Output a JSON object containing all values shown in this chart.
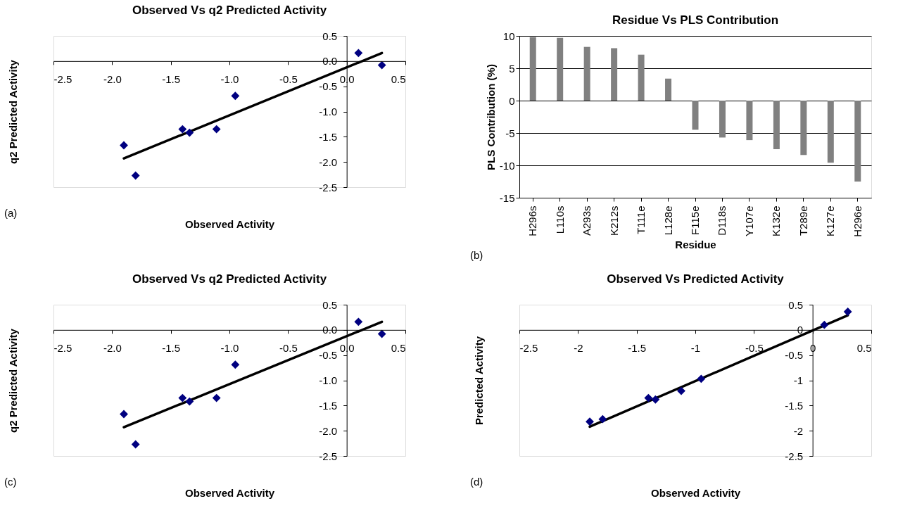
{
  "chart_data": [
    {
      "type": "scatter",
      "title": "Observed Vs q2 Predicted Activity",
      "xlabel": "Observed Activity",
      "ylabel": "q2 Predicted Activity",
      "xlim": [
        -2.5,
        0.5
      ],
      "ylim": [
        -2.5,
        0.5
      ],
      "xticks": [
        -2.5,
        {
          "value": -2,
          "label": "-2.0"
        },
        -1.5,
        {
          "value": -1,
          "label": "-1.0"
        },
        -0.5,
        {
          "value": 0,
          "label": "0.0"
        },
        0.5
      ],
      "yticks": [
        -2.5,
        {
          "value": -2,
          "label": "-2.0"
        },
        -1.5,
        {
          "value": -1,
          "label": "-1.0"
        },
        -0.5,
        {
          "value": 0,
          "label": "0.0"
        },
        0.5
      ],
      "grid": false,
      "annotations": [
        "(a)"
      ],
      "series": [
        {
          "type": "scatter",
          "marker": "diamond",
          "color": "#000080",
          "x": [
            -1.9,
            -1.8,
            -1.4,
            -1.34,
            -1.11,
            -0.95,
            0.1,
            0.3
          ],
          "values": [
            -1.67,
            -2.27,
            -1.35,
            -1.42,
            -1.35,
            -0.69,
            0.16,
            -0.08
          ]
        },
        {
          "type": "line",
          "line_style": "solid",
          "color": "#000000",
          "x": [
            -1.9,
            0.3
          ],
          "values": [
            -1.93,
            0.16
          ]
        }
      ]
    },
    {
      "type": "bar",
      "title": "Residue Vs PLS Contribution",
      "xlabel": "Residue",
      "ylabel": "PLS Contribution (%)",
      "ylim": [
        -15,
        10
      ],
      "yticks": [
        -15,
        -10,
        -5,
        0,
        5,
        10
      ],
      "grid": "y",
      "annotations": [
        "(b)"
      ],
      "categories": [
        "H296s",
        "L110s",
        "A293s",
        "K212s",
        "T111e",
        "L128e",
        "F115e",
        "D118s",
        "Y107e",
        "K132e",
        "T289e",
        "K127e",
        "H296e"
      ],
      "series": [
        {
          "color": "#808080",
          "values": [
            9.8,
            9.7,
            8.3,
            8.1,
            7.1,
            3.4,
            -4.5,
            -5.7,
            -6.1,
            -7.5,
            -8.4,
            -9.6,
            -12.5
          ]
        }
      ]
    },
    {
      "type": "scatter",
      "title": "Observed Vs q2 Predicted Activity",
      "xlabel": "Observed Activity",
      "ylabel": "q2 Predicted Activity",
      "xlim": [
        -2.5,
        0.5
      ],
      "ylim": [
        -2.5,
        0.5
      ],
      "xticks": [
        -2.5,
        {
          "value": -2,
          "label": "-2.0"
        },
        -1.5,
        {
          "value": -1,
          "label": "-1.0"
        },
        -0.5,
        {
          "value": 0,
          "label": "0.0"
        },
        0.5
      ],
      "yticks": [
        -2.5,
        {
          "value": -2,
          "label": "-2.0"
        },
        -1.5,
        {
          "value": -1,
          "label": "-1.0"
        },
        -0.5,
        {
          "value": 0,
          "label": "0.0"
        },
        0.5
      ],
      "grid": false,
      "annotations": [
        "(c)"
      ],
      "series": [
        {
          "type": "scatter",
          "marker": "diamond",
          "color": "#000080",
          "x": [
            -1.9,
            -1.8,
            -1.4,
            -1.34,
            -1.11,
            -0.95,
            0.1,
            0.3
          ],
          "values": [
            -1.67,
            -2.27,
            -1.35,
            -1.42,
            -1.35,
            -0.69,
            0.16,
            -0.08
          ]
        },
        {
          "type": "line",
          "line_style": "solid",
          "color": "#000000",
          "x": [
            -1.9,
            0.3
          ],
          "values": [
            -1.93,
            0.16
          ]
        }
      ]
    },
    {
      "type": "scatter",
      "title": "Observed Vs Predicted Activity",
      "xlabel": "Observed  Activity",
      "ylabel": "Predicted Activity",
      "xlim": [
        -2.5,
        0.5
      ],
      "ylim": [
        -2.5,
        0.5
      ],
      "xticks": [
        -2.5,
        -2,
        -1.5,
        -1,
        -0.5,
        0,
        0.5
      ],
      "yticks": [
        -2.5,
        -2,
        -1.5,
        -1,
        -0.5,
        0,
        0.5
      ],
      "grid": false,
      "annotations": [
        "(d)"
      ],
      "series": [
        {
          "type": "scatter",
          "marker": "diamond",
          "color": "#000080",
          "x": [
            -1.9,
            -1.79,
            -1.4,
            -1.34,
            -1.12,
            -0.95,
            0.1,
            0.3
          ],
          "values": [
            -1.82,
            -1.77,
            -1.35,
            -1.38,
            -1.21,
            -0.97,
            0.1,
            0.36
          ]
        },
        {
          "type": "line",
          "line_style": "solid",
          "color": "#000000",
          "x": [
            -1.9,
            0.3
          ],
          "values": [
            -1.92,
            0.29
          ]
        }
      ]
    }
  ]
}
